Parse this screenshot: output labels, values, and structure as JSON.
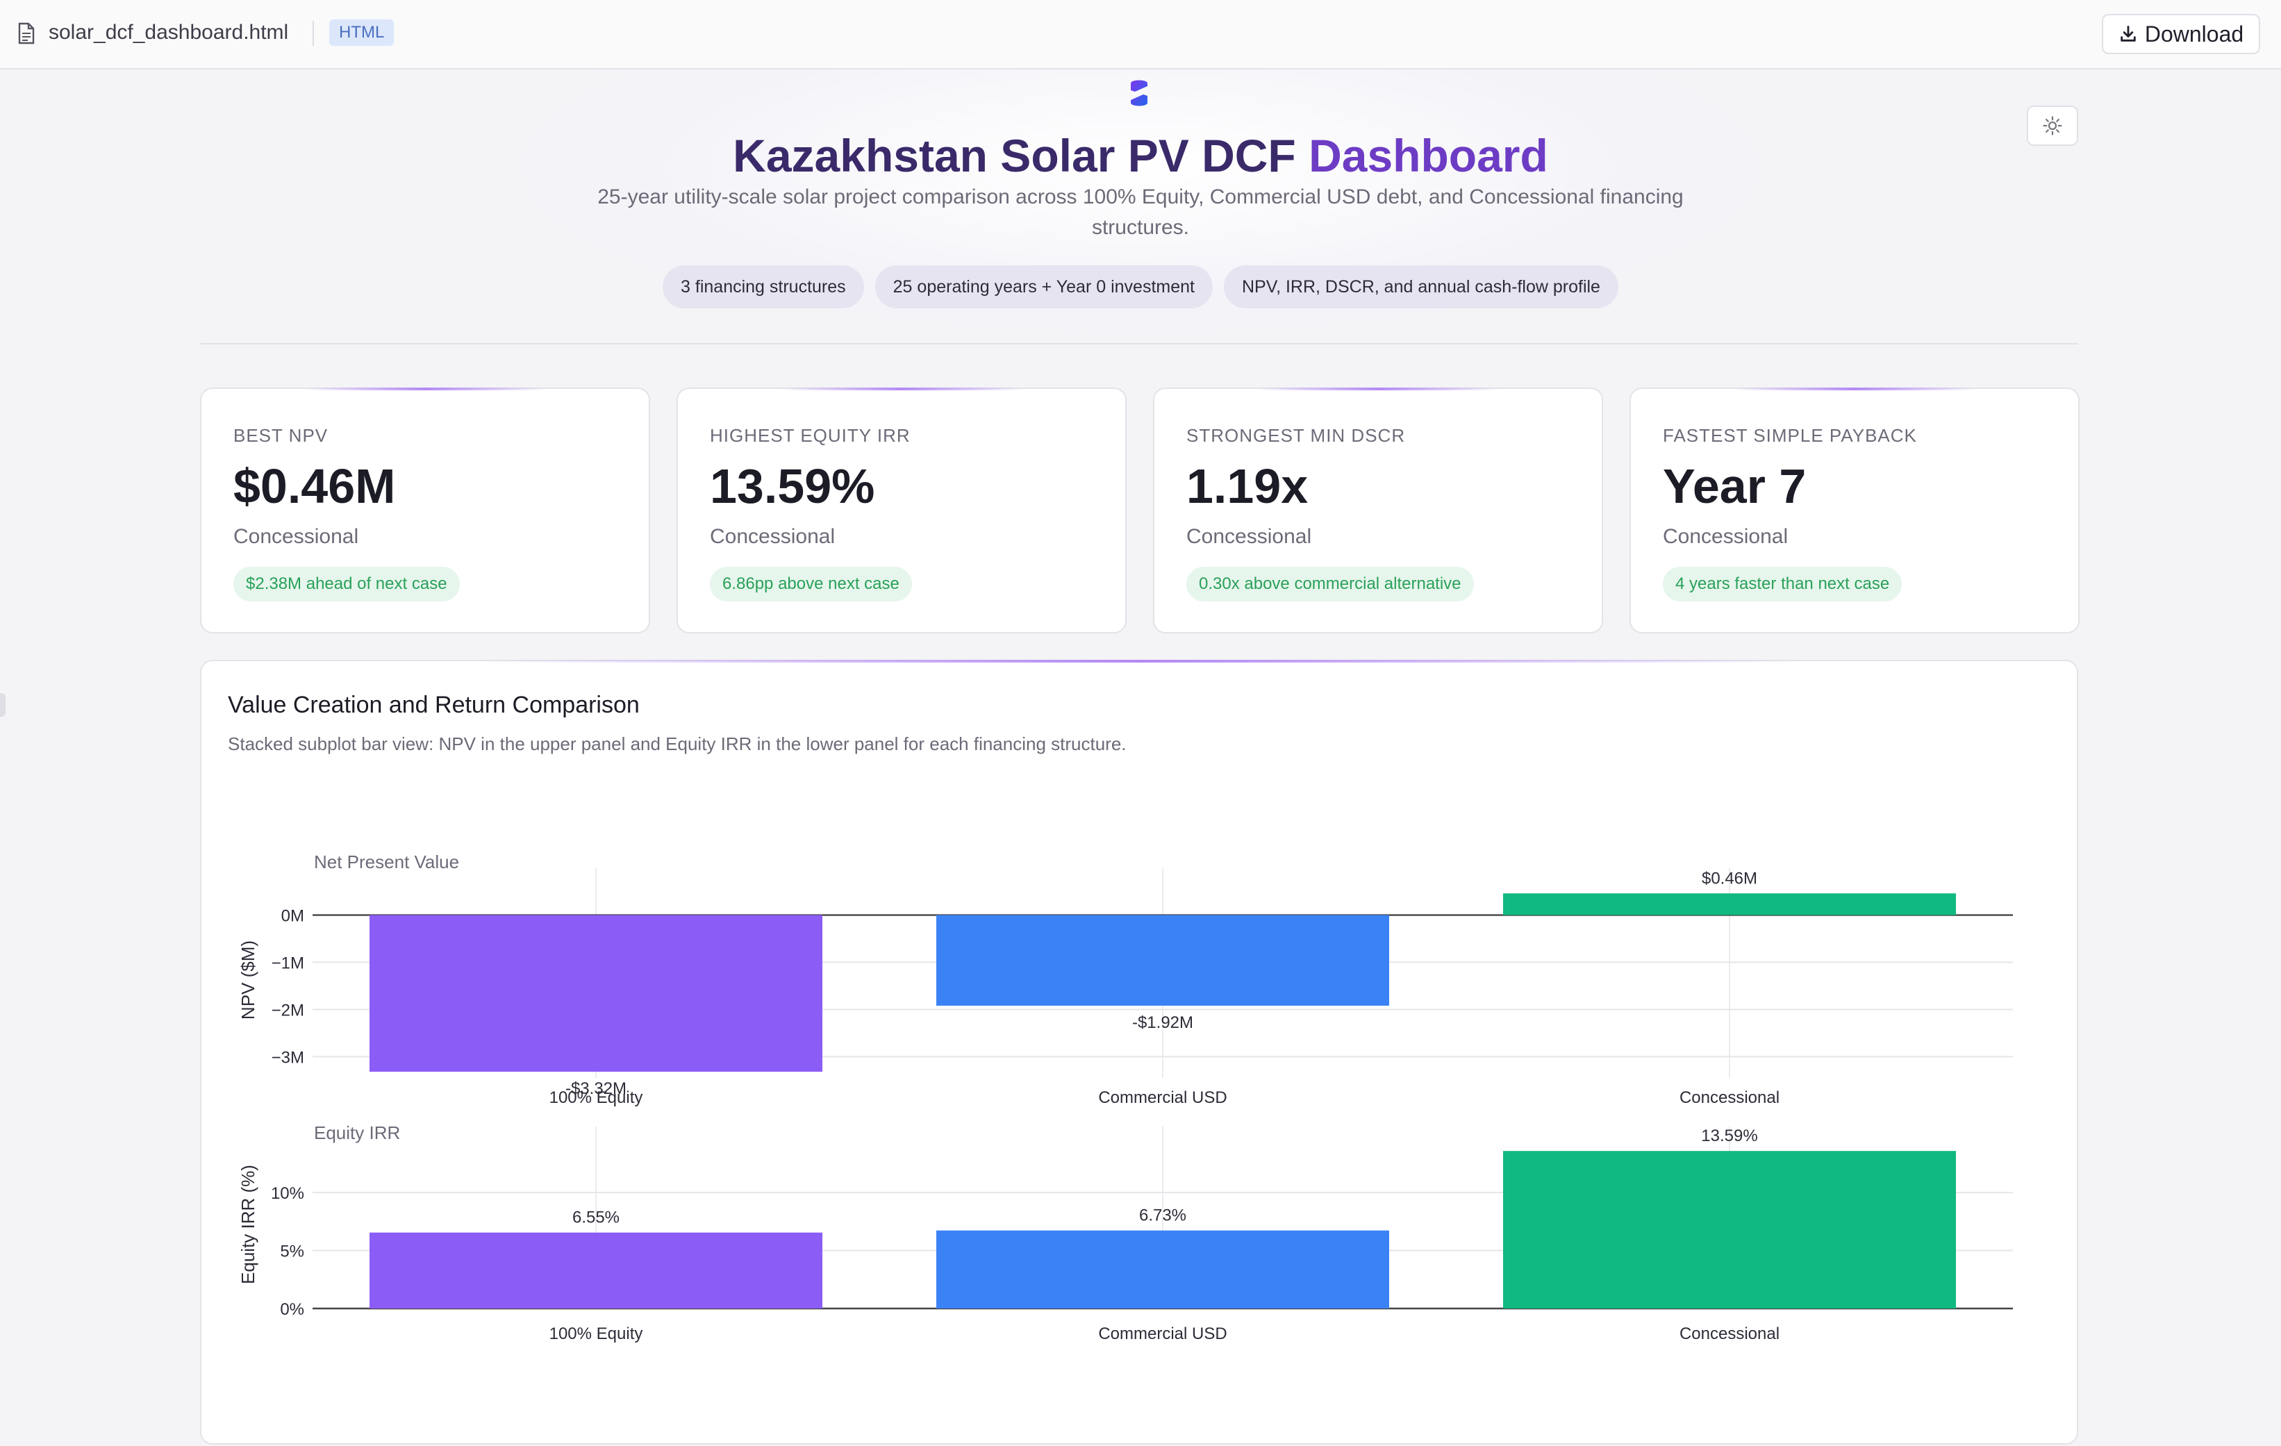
{
  "topbar": {
    "file_name": "solar_dcf_dashboard.html",
    "badge": "HTML",
    "download_label": "Download"
  },
  "header": {
    "title_main": "Kazakhstan Solar PV DCF ",
    "title_accent": "Dashboard",
    "subtitle": "25-year utility-scale solar project comparison across 100% Equity, Commercial USD debt, and Concessional financing structures.",
    "chips": [
      "3 financing structures",
      "25 operating years + Year 0 investment",
      "NPV, IRR, DSCR, and annual cash-flow profile"
    ]
  },
  "kpis": [
    {
      "label": "BEST NPV",
      "value": "$0.46M",
      "sub": "Concessional",
      "note": "$2.38M ahead of next case"
    },
    {
      "label": "HIGHEST EQUITY IRR",
      "value": "13.59%",
      "sub": "Concessional",
      "note": "6.86pp above next case"
    },
    {
      "label": "STRONGEST MIN DSCR",
      "value": "1.19x",
      "sub": "Concessional",
      "note": "0.30x above commercial alternative"
    },
    {
      "label": "FASTEST SIMPLE PAYBACK",
      "value": "Year 7",
      "sub": "Concessional",
      "note": "4 years faster than next case"
    }
  ],
  "panel": {
    "title": "Value Creation and Return Comparison",
    "description": "Stacked subplot bar view: NPV in the upper panel and Equity IRR in the lower panel for each financing structure."
  },
  "colors": {
    "equity": "#8b5cf6",
    "commercial": "#3b82f6",
    "concessional": "#10b981",
    "accent": "#6d3cc4"
  },
  "chart_data": [
    {
      "type": "bar",
      "title": "Net Present Value",
      "ylabel": "NPV ($M)",
      "categories": [
        "100% Equity",
        "Commercial USD",
        "Concessional"
      ],
      "values": [
        -3.32,
        -1.92,
        0.46
      ],
      "data_labels": [
        "-$3.32M",
        "-$1.92M",
        "$0.46M"
      ],
      "yticks": [
        0,
        -1,
        -2,
        -3
      ],
      "ytick_labels": [
        "0M",
        "−1M",
        "−2M",
        "−3M"
      ],
      "ylim": [
        -3.45,
        0.7
      ],
      "grid": true
    },
    {
      "type": "bar",
      "title": "Equity IRR",
      "ylabel": "Equity IRR (%)",
      "categories": [
        "100% Equity",
        "Commercial USD",
        "Concessional"
      ],
      "values": [
        6.55,
        6.73,
        13.59
      ],
      "data_labels": [
        "6.55%",
        "6.73%",
        "13.59%"
      ],
      "yticks": [
        0,
        5,
        10
      ],
      "ytick_labels": [
        "0%",
        "5%",
        "10%"
      ],
      "ylim": [
        0,
        14.5
      ],
      "grid": true
    }
  ]
}
